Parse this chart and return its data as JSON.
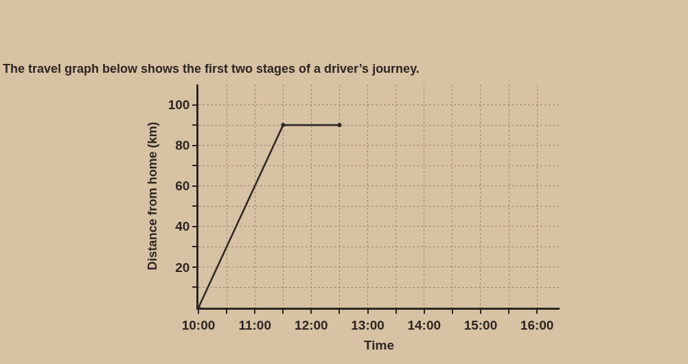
{
  "chart_data": {
    "type": "line",
    "title": "The travel graph below shows the first two stages of a driver’s journey.",
    "xlabel": "Time",
    "ylabel": "Distance from home (km)",
    "x": [
      10,
      11.5,
      12.5
    ],
    "series": [
      {
        "color": "#2e2a27",
        "values": [
          0,
          90,
          90
        ]
      }
    ],
    "xlim": [
      10,
      16.4
    ],
    "ylim": [
      0,
      110
    ],
    "xticks": [
      {
        "value": 10,
        "label": "10:00"
      },
      {
        "value": 10.5,
        "label": null
      },
      {
        "value": 11,
        "label": "11:00"
      },
      {
        "value": 11.5,
        "label": null
      },
      {
        "value": 12,
        "label": "12:00"
      },
      {
        "value": 12.5,
        "label": null
      },
      {
        "value": 13,
        "label": "13:00"
      },
      {
        "value": 13.5,
        "label": null
      },
      {
        "value": 14,
        "label": "14:00"
      },
      {
        "value": 14.5,
        "label": null
      },
      {
        "value": 15,
        "label": "15:00"
      },
      {
        "value": 15.5,
        "label": null
      },
      {
        "value": 16,
        "label": "16:00"
      }
    ],
    "yticks": [
      {
        "value": 10,
        "label": null
      },
      20,
      {
        "value": 30,
        "label": null
      },
      40,
      {
        "value": 50,
        "label": null
      },
      60,
      {
        "value": 70,
        "label": null
      },
      80,
      {
        "value": 90,
        "label": null
      },
      100
    ],
    "grid": true,
    "marker": "circle",
    "line_style": "solid"
  }
}
